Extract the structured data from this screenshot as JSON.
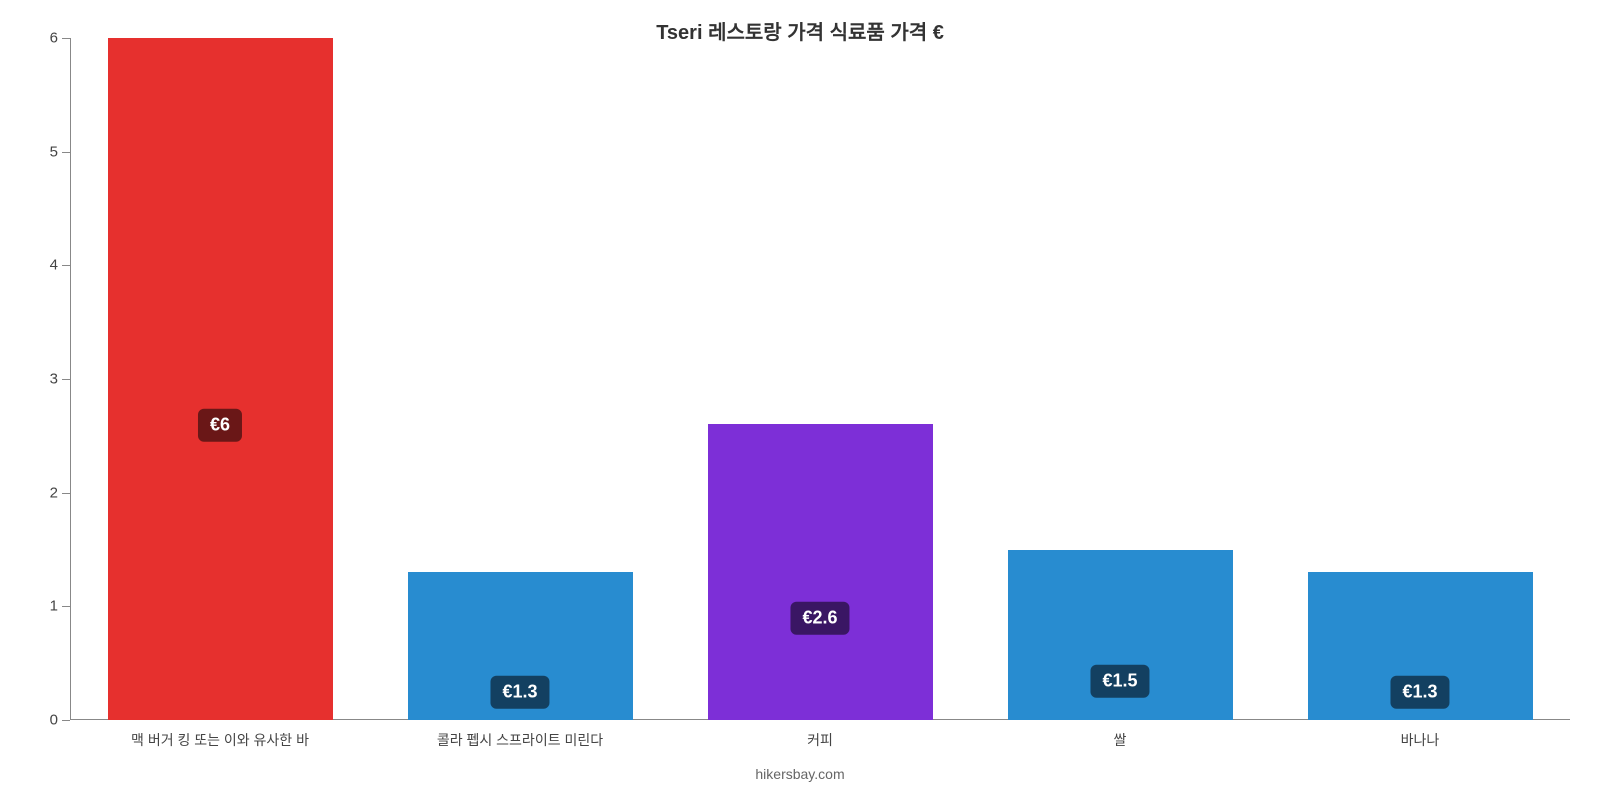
{
  "chart": {
    "type": "bar",
    "title": "Tseri 레스토랑 가격 식료품 가격 €",
    "title_fontsize": 20,
    "title_color": "#333333",
    "background_color": "#ffffff",
    "axis_color": "#888888",
    "tick_label_color": "#444444",
    "tick_label_fontsize": 15,
    "x_label_fontsize": 14,
    "ylim": [
      0,
      6
    ],
    "ytick_step": 1,
    "yticks": [
      0,
      1,
      2,
      3,
      4,
      5,
      6
    ],
    "bar_width_pct": 75,
    "categories": [
      "맥 버거 킹 또는 이와 유사한 바",
      "콜라 펩시 스프라이트 미린다",
      "커피",
      "쌀",
      "바나나"
    ],
    "values": [
      6,
      1.3,
      2.6,
      1.5,
      1.3
    ],
    "value_labels": [
      "€6",
      "€1.3",
      "€2.6",
      "€1.5",
      "€1.3"
    ],
    "bar_colors": [
      "#e6302e",
      "#288cd0",
      "#7d2fd7",
      "#288cd0",
      "#288cd0"
    ],
    "badge_bg_colors": [
      "#6a1717",
      "#134061",
      "#3a1664",
      "#134061",
      "#134061"
    ],
    "badge_text_color": "#ffffff",
    "badge_fontsize": 18,
    "badge_border_radius": 6
  },
  "footer": {
    "text": "hikersbay.com",
    "fontsize": 14,
    "color": "#666666"
  }
}
